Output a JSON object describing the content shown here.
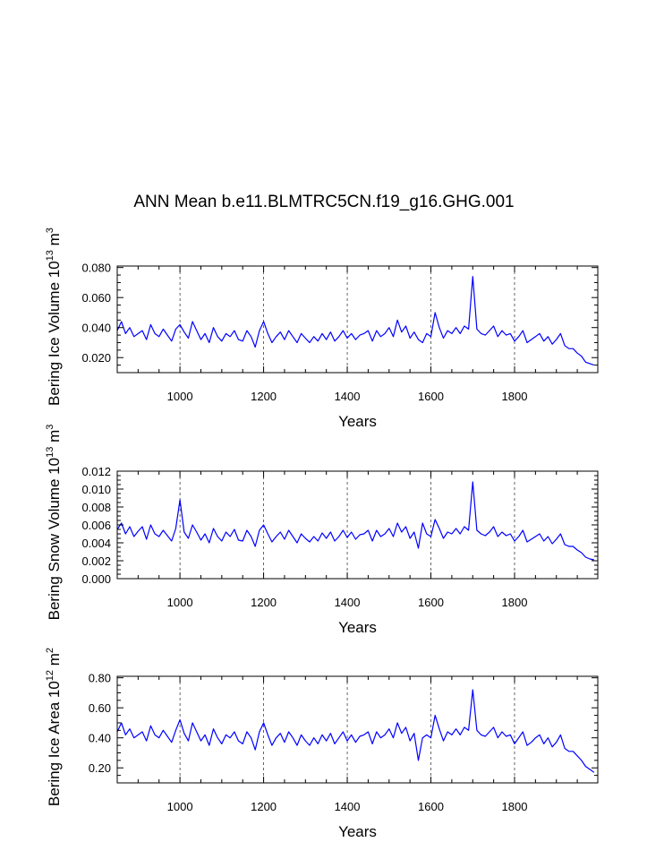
{
  "title": "ANN Mean b.e11.BLMTRC5CN.f19_g16.GHG.001",
  "chart_data": [
    {
      "type": "line",
      "ylabel": "Bering Ice Volume 10",
      "ylabel_sup": "13",
      "ylabel_unit": " m",
      "ylabel_unit_sup": "3",
      "xlabel": "Years",
      "xlim": [
        850,
        1999
      ],
      "ylim": [
        0.01,
        0.081
      ],
      "x_ticks": [
        1000,
        1200,
        1400,
        1600,
        1800
      ],
      "x_tick_labels": [
        "1000",
        "1200",
        "1400",
        "1600",
        "1800"
      ],
      "y_ticks": [
        0.02,
        0.04,
        0.06,
        0.08
      ],
      "y_tick_labels": [
        "0.020",
        "0.040",
        "0.060",
        "0.080"
      ],
      "grid": "vertical dashed at major x ticks",
      "color": "#0000ff",
      "series": {
        "x_start": 850,
        "x_step": 10,
        "values": [
          0.038,
          0.044,
          0.036,
          0.04,
          0.034,
          0.036,
          0.038,
          0.032,
          0.042,
          0.036,
          0.034,
          0.039,
          0.035,
          0.031,
          0.039,
          0.042,
          0.037,
          0.033,
          0.044,
          0.038,
          0.032,
          0.036,
          0.03,
          0.04,
          0.034,
          0.031,
          0.036,
          0.034,
          0.038,
          0.032,
          0.031,
          0.038,
          0.034,
          0.027,
          0.038,
          0.044,
          0.036,
          0.03,
          0.034,
          0.037,
          0.032,
          0.038,
          0.034,
          0.03,
          0.036,
          0.033,
          0.03,
          0.034,
          0.031,
          0.036,
          0.032,
          0.037,
          0.031,
          0.034,
          0.038,
          0.033,
          0.036,
          0.032,
          0.035,
          0.036,
          0.038,
          0.031,
          0.038,
          0.034,
          0.036,
          0.04,
          0.034,
          0.045,
          0.037,
          0.041,
          0.033,
          0.037,
          0.032,
          0.03,
          0.036,
          0.034,
          0.05,
          0.04,
          0.033,
          0.038,
          0.036,
          0.04,
          0.036,
          0.041,
          0.039,
          0.074,
          0.039,
          0.036,
          0.035,
          0.038,
          0.041,
          0.034,
          0.038,
          0.035,
          0.036,
          0.031,
          0.034,
          0.038,
          0.03,
          0.032,
          0.034,
          0.036,
          0.031,
          0.034,
          0.029,
          0.032,
          0.036,
          0.028,
          0.026,
          0.026,
          0.023,
          0.021,
          0.017,
          0.016,
          0.015
        ]
      }
    },
    {
      "type": "line",
      "ylabel": "Bering Snow Volume 10",
      "ylabel_sup": "13",
      "ylabel_unit": " m",
      "ylabel_unit_sup": "3",
      "xlabel": "Years",
      "xlim": [
        850,
        1999
      ],
      "ylim": [
        0.0,
        0.012
      ],
      "x_ticks": [
        1000,
        1200,
        1400,
        1600,
        1800
      ],
      "x_tick_labels": [
        "1000",
        "1200",
        "1400",
        "1600",
        "1800"
      ],
      "y_ticks": [
        0.0,
        0.002,
        0.004,
        0.006,
        0.008,
        0.01,
        0.012
      ],
      "y_tick_labels": [
        "0.000",
        "0.002",
        "0.004",
        "0.006",
        "0.008",
        "0.010",
        "0.012"
      ],
      "grid": "vertical dashed at major x ticks",
      "color": "#0000ff",
      "series": {
        "x_start": 850,
        "x_step": 10,
        "values": [
          0.0055,
          0.0062,
          0.005,
          0.0058,
          0.0047,
          0.0053,
          0.0058,
          0.0044,
          0.006,
          0.005,
          0.0047,
          0.0054,
          0.0048,
          0.0042,
          0.0056,
          0.0088,
          0.0052,
          0.0045,
          0.006,
          0.0052,
          0.0043,
          0.005,
          0.004,
          0.0056,
          0.0047,
          0.0042,
          0.0052,
          0.0047,
          0.0055,
          0.0043,
          0.0042,
          0.0054,
          0.0047,
          0.0036,
          0.0054,
          0.006,
          0.005,
          0.0041,
          0.0047,
          0.0052,
          0.0044,
          0.0054,
          0.0047,
          0.004,
          0.005,
          0.0045,
          0.0041,
          0.0047,
          0.0042,
          0.0051,
          0.0045,
          0.0052,
          0.0042,
          0.0047,
          0.0054,
          0.0046,
          0.0052,
          0.0044,
          0.0049,
          0.005,
          0.0054,
          0.0042,
          0.0054,
          0.0047,
          0.005,
          0.0056,
          0.0047,
          0.0062,
          0.0052,
          0.0058,
          0.0045,
          0.0052,
          0.0034,
          0.0062,
          0.005,
          0.0047,
          0.0066,
          0.0056,
          0.0045,
          0.0052,
          0.005,
          0.0056,
          0.005,
          0.0058,
          0.0054,
          0.0108,
          0.0054,
          0.005,
          0.0048,
          0.0052,
          0.0058,
          0.0047,
          0.0052,
          0.0048,
          0.005,
          0.0042,
          0.0047,
          0.0054,
          0.0041,
          0.0044,
          0.0047,
          0.005,
          0.0042,
          0.0047,
          0.0039,
          0.0044,
          0.005,
          0.0038,
          0.0036,
          0.0036,
          0.0032,
          0.0029,
          0.0024,
          0.0022,
          0.0021
        ]
      }
    },
    {
      "type": "line",
      "ylabel": "Bering Ice Area 10",
      "ylabel_sup": "12",
      "ylabel_unit": " m",
      "ylabel_unit_sup": "2",
      "xlabel": "Years",
      "xlim": [
        850,
        1999
      ],
      "ylim": [
        0.1,
        0.81
      ],
      "x_ticks": [
        1000,
        1200,
        1400,
        1600,
        1800
      ],
      "x_tick_labels": [
        "1000",
        "1200",
        "1400",
        "1600",
        "1800"
      ],
      "y_ticks": [
        0.2,
        0.4,
        0.6,
        0.8
      ],
      "y_tick_labels": [
        "0.20",
        "0.40",
        "0.60",
        "0.80"
      ],
      "grid": "vertical dashed at major x ticks",
      "color": "#0000ff",
      "series": {
        "x_start": 850,
        "x_step": 10,
        "values": [
          0.44,
          0.5,
          0.42,
          0.46,
          0.4,
          0.42,
          0.44,
          0.38,
          0.48,
          0.42,
          0.4,
          0.45,
          0.41,
          0.37,
          0.45,
          0.52,
          0.43,
          0.38,
          0.5,
          0.44,
          0.38,
          0.42,
          0.35,
          0.46,
          0.4,
          0.36,
          0.42,
          0.4,
          0.44,
          0.38,
          0.36,
          0.44,
          0.4,
          0.32,
          0.44,
          0.5,
          0.42,
          0.35,
          0.4,
          0.43,
          0.37,
          0.44,
          0.4,
          0.35,
          0.42,
          0.38,
          0.35,
          0.4,
          0.36,
          0.42,
          0.38,
          0.43,
          0.36,
          0.4,
          0.44,
          0.38,
          0.42,
          0.37,
          0.41,
          0.42,
          0.44,
          0.36,
          0.44,
          0.4,
          0.42,
          0.46,
          0.4,
          0.5,
          0.43,
          0.47,
          0.38,
          0.43,
          0.25,
          0.4,
          0.42,
          0.4,
          0.55,
          0.46,
          0.38,
          0.44,
          0.42,
          0.46,
          0.42,
          0.47,
          0.45,
          0.72,
          0.45,
          0.42,
          0.41,
          0.44,
          0.47,
          0.4,
          0.44,
          0.41,
          0.42,
          0.36,
          0.4,
          0.44,
          0.35,
          0.37,
          0.4,
          0.42,
          0.36,
          0.4,
          0.34,
          0.37,
          0.42,
          0.33,
          0.31,
          0.31,
          0.28,
          0.25,
          0.21,
          0.19,
          0.17
        ]
      }
    }
  ]
}
